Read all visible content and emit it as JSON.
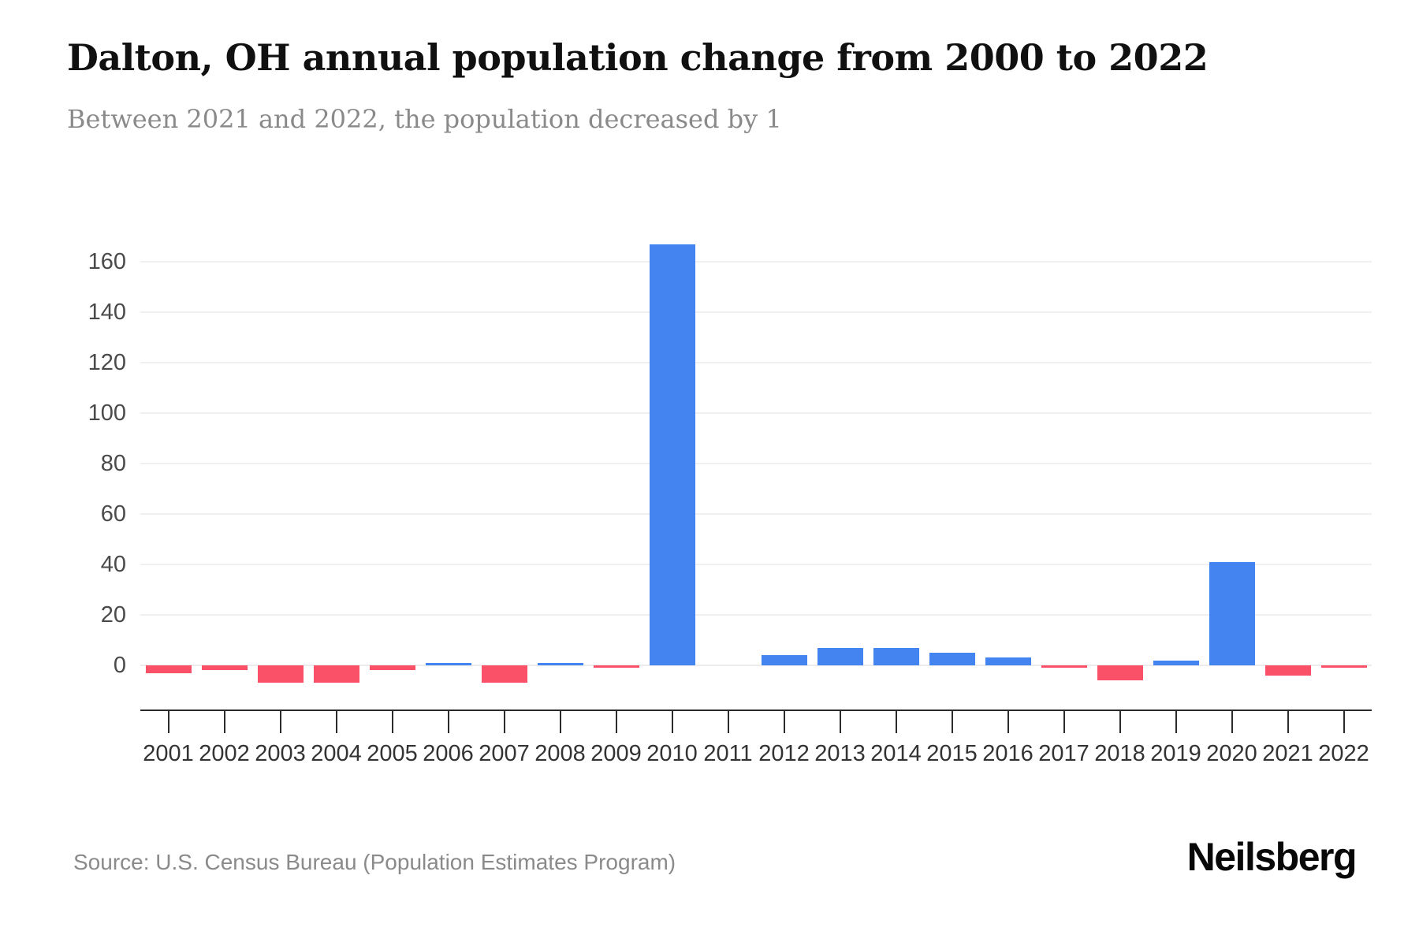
{
  "page": {
    "title": "Dalton, OH annual population change from 2000 to 2022",
    "subtitle": "Between 2021 and 2022, the population decreased by 1",
    "source": "Source: U.S. Census Bureau (Population Estimates Program)",
    "brand": "Neilsberg"
  },
  "chart_data": {
    "type": "bar",
    "title": "Dalton, OH annual population change from 2000 to 2022",
    "subtitle": "Between 2021 and 2022, the population decreased by 1",
    "categories": [
      "2001",
      "2002",
      "2003",
      "2004",
      "2005",
      "2006",
      "2007",
      "2008",
      "2009",
      "2010",
      "2011",
      "2012",
      "2013",
      "2014",
      "2015",
      "2016",
      "2017",
      "2018",
      "2019",
      "2020",
      "2021",
      "2022"
    ],
    "values": [
      -3,
      -2,
      -7,
      -7,
      -2,
      1,
      -7,
      1,
      -1,
      167,
      0,
      4,
      7,
      7,
      5,
      3,
      -1,
      -6,
      2,
      41,
      -4,
      -1
    ],
    "xlabel": "",
    "ylabel": "",
    "ylim": [
      -10,
      175
    ],
    "yticks": [
      0,
      20,
      40,
      60,
      80,
      100,
      120,
      140,
      160
    ],
    "grid": true,
    "legend": false,
    "colors": {
      "positive": "#4484F0",
      "negative": "#FA5168"
    },
    "source": "Source: U.S. Census Bureau (Population Estimates Program)",
    "brand": "Neilsberg"
  }
}
